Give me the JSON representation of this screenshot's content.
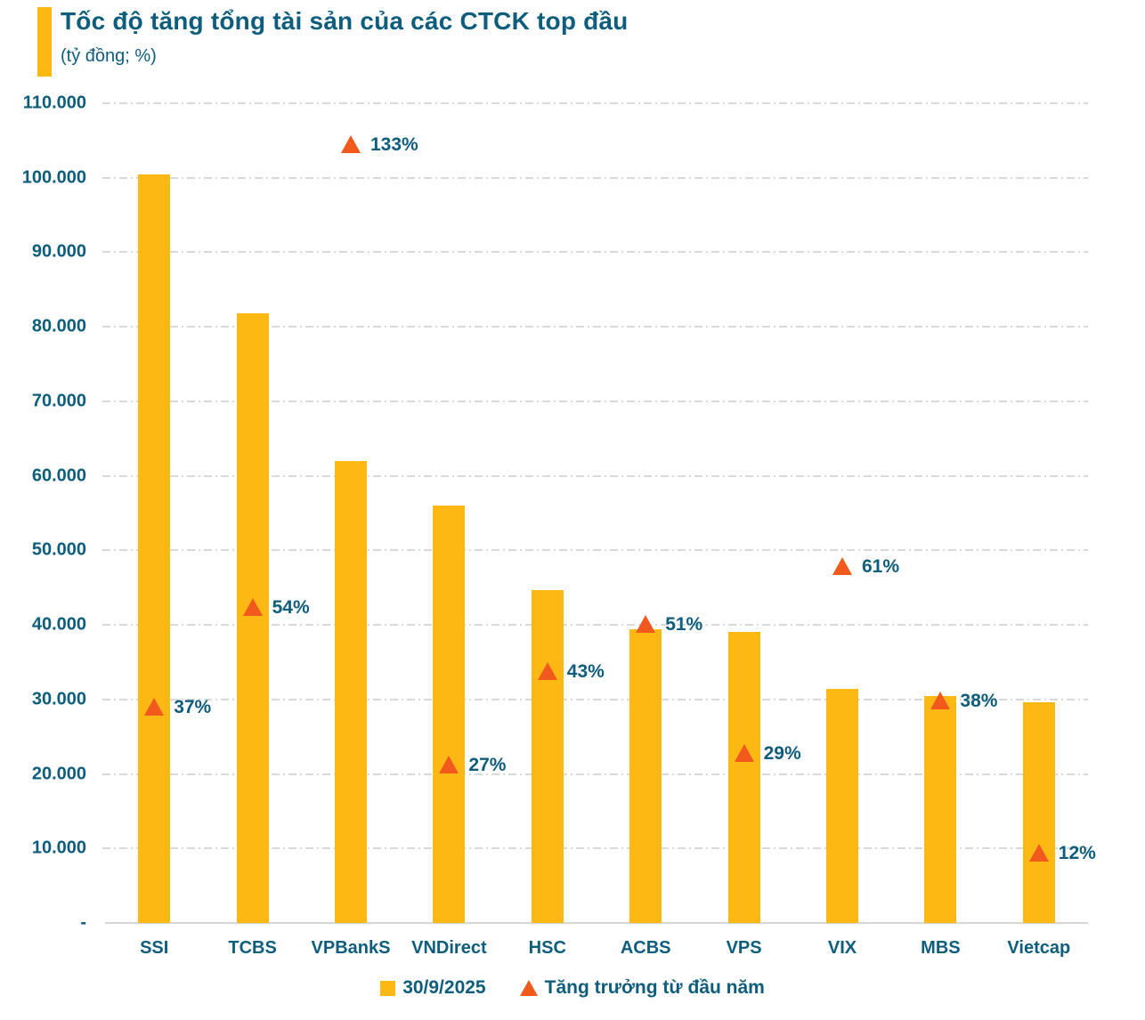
{
  "header": {
    "title": "Tốc độ tăng tổng tài sản của các CTCK top đầu",
    "subtitle": "(tỷ đồng; %)"
  },
  "colors": {
    "bar": "#FDB813",
    "triangle": "#F2591D",
    "text": "#0E5D7D",
    "gridline": "#D9D9D9"
  },
  "chart_data": {
    "type": "bar",
    "title": "Tốc độ tăng tổng tài sản của các CTCK top đầu",
    "unit_label": "(tỷ đồng; %)",
    "categories": [
      "SSI",
      "TCBS",
      "VPBankS",
      "VNDirect",
      "HSC",
      "ACBS",
      "VPS",
      "VIX",
      "MBS",
      "Vietcap"
    ],
    "series": [
      {
        "name": "30/9/2025",
        "type": "bar",
        "unit": "tỷ đồng",
        "values": [
          100500,
          81800,
          62000,
          56000,
          44700,
          39400,
          39100,
          31400,
          30500,
          29600
        ]
      },
      {
        "name": "Tăng trưởng từ đầu năm",
        "type": "triangle-marker",
        "unit": "%",
        "values": [
          37,
          54,
          133,
          27,
          43,
          51,
          29,
          61,
          38,
          12
        ],
        "labels": [
          "37%",
          "54%",
          "133%",
          "27%",
          "43%",
          "51%",
          "29%",
          "61%",
          "38%",
          "12%"
        ]
      }
    ],
    "ylim": [
      0,
      110000
    ],
    "ytick_step": 10000,
    "ytick_labels": [
      "-",
      "10.000",
      "20.000",
      "30.000",
      "40.000",
      "50.000",
      "60.000",
      "70.000",
      "80.000",
      "90.000",
      "100.000",
      "110.000"
    ],
    "secondary_ylim": [
      0,
      140
    ],
    "grid": true,
    "legend_position": "bottom"
  },
  "legend": {
    "items": [
      {
        "label": "30/9/2025",
        "marker": "square",
        "color": "#FDB813"
      },
      {
        "label": "Tăng trưởng từ đầu năm",
        "marker": "triangle",
        "color": "#F2591D"
      }
    ]
  }
}
